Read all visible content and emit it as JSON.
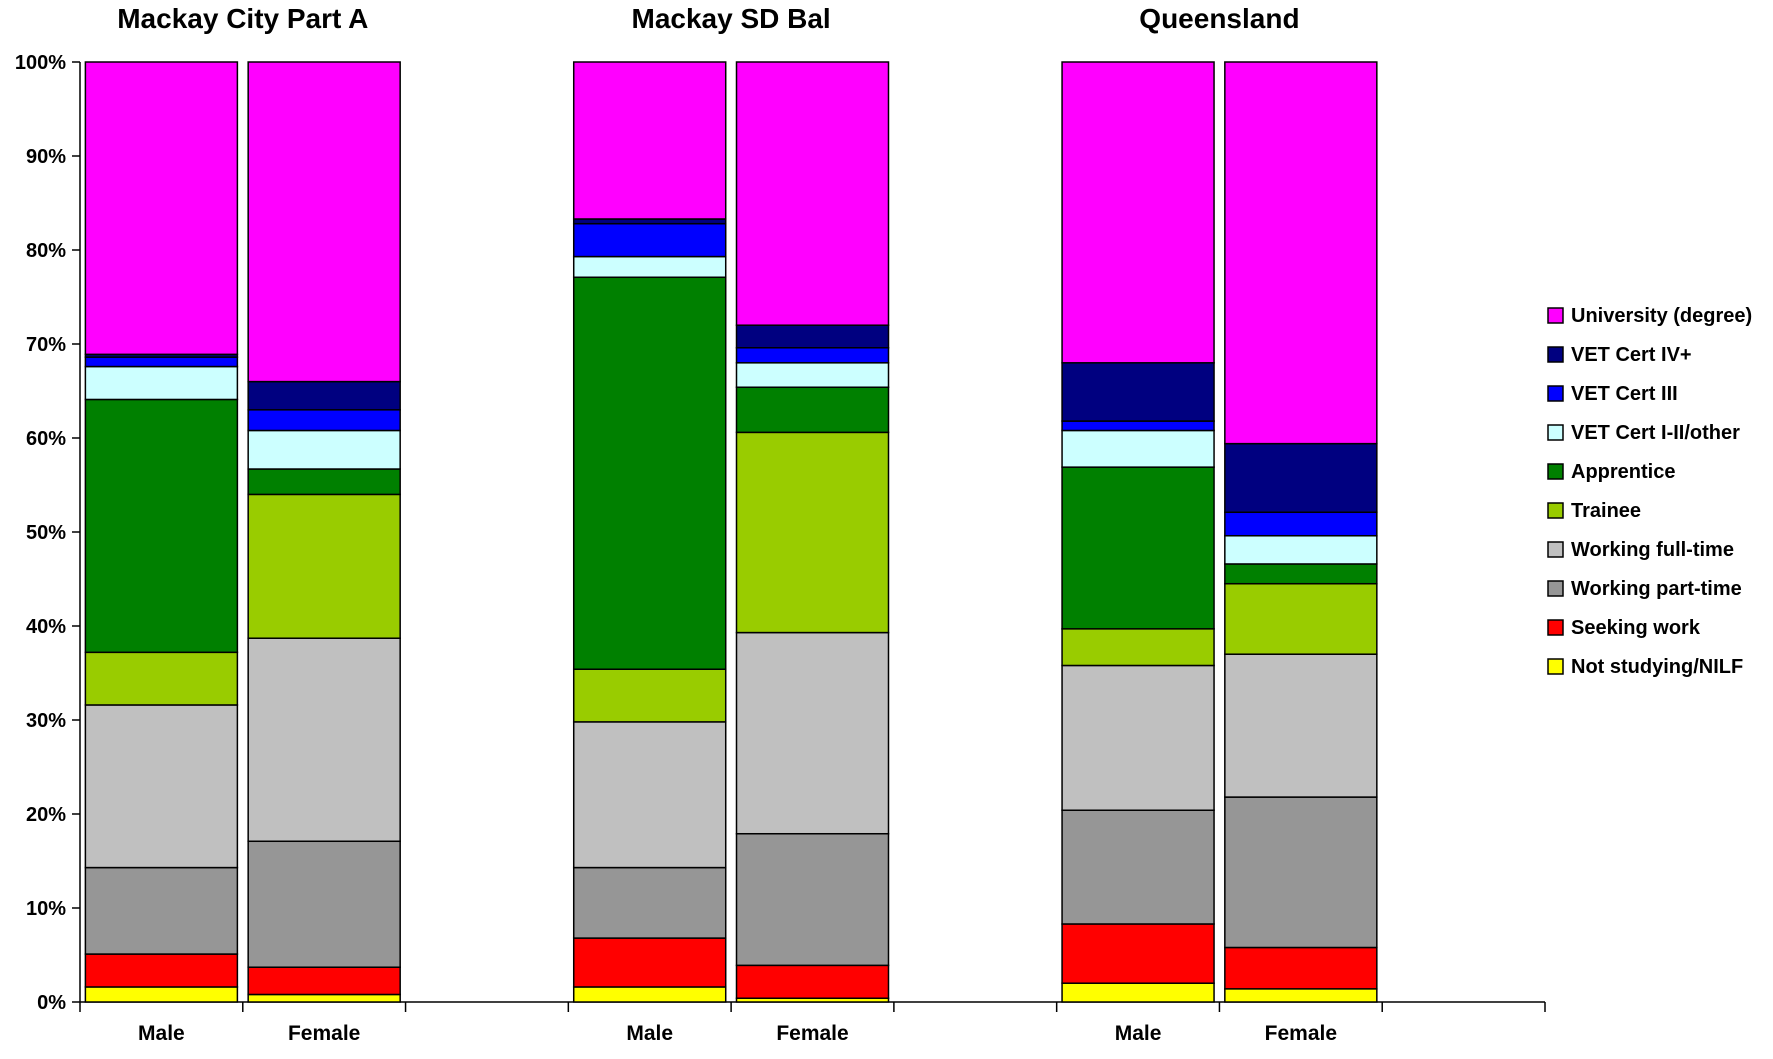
{
  "chart_data": {
    "type": "bar",
    "stacked": true,
    "percent": true,
    "group_titles": [
      "Mackay City Part A",
      "Mackay SD Bal",
      "Queensland"
    ],
    "categories": [
      "Male",
      "Female",
      "Male",
      "Female",
      "Male",
      "Female"
    ],
    "group_of_category": [
      0,
      0,
      1,
      1,
      2,
      2
    ],
    "y_ticks": [
      "0%",
      "10%",
      "20%",
      "30%",
      "40%",
      "50%",
      "60%",
      "70%",
      "80%",
      "90%",
      "100%"
    ],
    "ylim": [
      0,
      100
    ],
    "grid": false,
    "legend_position": "right",
    "series": [
      {
        "name": "Not studying/NILF",
        "color": "#ffff00",
        "values": [
          1.6,
          0.8,
          1.6,
          0.4,
          2.0,
          1.4
        ]
      },
      {
        "name": "Seeking work",
        "color": "#ff0000",
        "values": [
          3.5,
          2.9,
          5.2,
          3.5,
          6.3,
          4.4
        ]
      },
      {
        "name": "Working part-time",
        "color": "#969696",
        "values": [
          9.2,
          13.4,
          7.5,
          14.0,
          12.1,
          16.0
        ]
      },
      {
        "name": "Working full-time",
        "color": "#c0c0c0",
        "values": [
          17.3,
          21.6,
          15.5,
          21.4,
          15.4,
          15.2
        ]
      },
      {
        "name": "Trainee",
        "color": "#99cc00",
        "values": [
          5.6,
          15.3,
          5.6,
          21.3,
          3.9,
          7.5
        ]
      },
      {
        "name": "Apprentice",
        "color": "#008000",
        "values": [
          26.9,
          2.7,
          41.7,
          4.8,
          17.2,
          2.1
        ]
      },
      {
        "name": "VET Cert I-II/other",
        "color": "#ccffff",
        "values": [
          3.5,
          4.1,
          2.2,
          2.6,
          3.9,
          3.0
        ]
      },
      {
        "name": "VET Cert III",
        "color": "#0000ff",
        "values": [
          1.0,
          2.2,
          3.5,
          1.6,
          1.0,
          2.5
        ]
      },
      {
        "name": "VET Cert IV+",
        "color": "#000080",
        "values": [
          0.3,
          3.0,
          0.5,
          2.4,
          6.2,
          7.3
        ]
      },
      {
        "name": "University (degree)",
        "color": "#ff00ff",
        "values": [
          31.1,
          34.0,
          16.7,
          28.0,
          32.0,
          40.6
        ]
      }
    ]
  }
}
